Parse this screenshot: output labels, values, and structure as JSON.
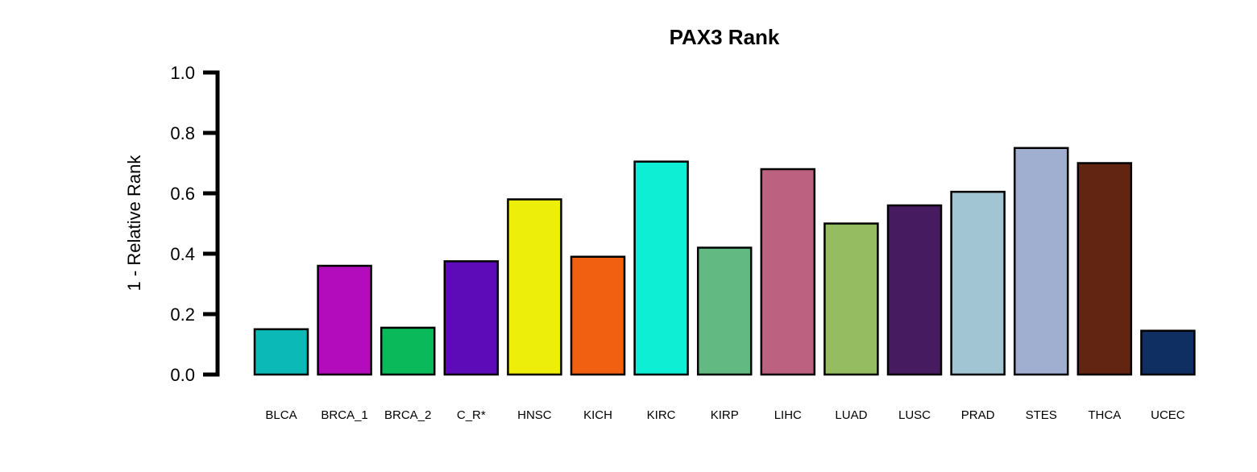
{
  "chart_data": {
    "type": "bar",
    "title": "PAX3 Rank",
    "xlabel": "",
    "ylabel": "1 - Relative Rank",
    "ylim": [
      0,
      1
    ],
    "yticks": [
      "0.0",
      "0.2",
      "0.4",
      "0.6",
      "0.8",
      "1.0"
    ],
    "grid": false,
    "categories": [
      "BLCA",
      "BRCA_1",
      "BRCA_2",
      "C_R*",
      "HNSC",
      "KICH",
      "KIRC",
      "KIRP",
      "LIHC",
      "LUAD",
      "LUSC",
      "PRAD",
      "STES",
      "THCA",
      "UCEC"
    ],
    "values": [
      0.15,
      0.36,
      0.155,
      0.375,
      0.58,
      0.39,
      0.705,
      0.42,
      0.68,
      0.5,
      0.56,
      0.605,
      0.75,
      0.7,
      0.145
    ],
    "colors": [
      "#0BBAB6",
      "#B20CBC",
      "#0AB95A",
      "#5D0BB9",
      "#EEEE0B",
      "#F06010",
      "#0EEED4",
      "#62BA82",
      "#BD6180",
      "#95BC61",
      "#471B5F",
      "#A1C5D2",
      "#A0AED0",
      "#622512",
      "#0F2E62"
    ]
  }
}
